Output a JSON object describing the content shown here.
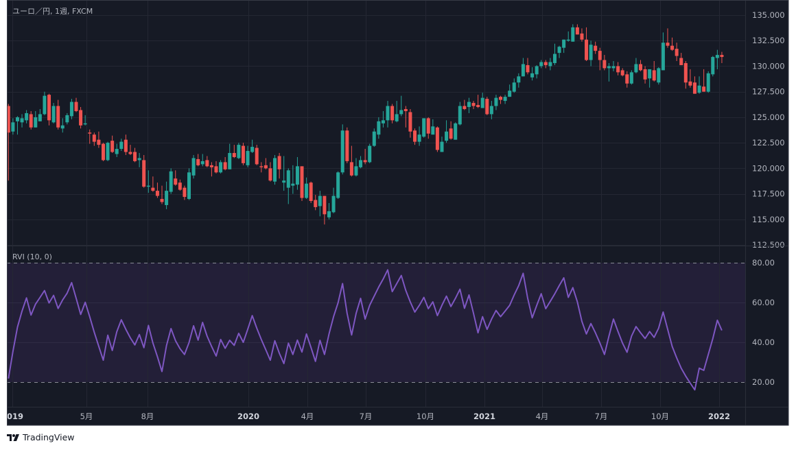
{
  "header": {
    "symbol_title": "ユーロ／円, 1週, FXCM"
  },
  "indicator": {
    "title": "RVI (10, 0)"
  },
  "brand": {
    "name": "TradingView",
    "logo_text": "TV"
  },
  "colors": {
    "background": "#161a25",
    "grid": "#242733",
    "up": "#26a69a",
    "down": "#ef5350",
    "rvi_line": "#7e57c2",
    "rvi_band": "#241f39",
    "axis_text": "#b2b5be"
  },
  "chart_data": [
    {
      "type": "candlestick",
      "title": "ユーロ／円, 1週, FXCM",
      "interval": "1週",
      "yticks": [
        "135.000",
        "132.500",
        "130.000",
        "127.500",
        "125.000",
        "122.500",
        "120.000",
        "117.500",
        "115.000",
        "112.500"
      ],
      "ylim": [
        112.5,
        135
      ],
      "grid": true,
      "ohlc_columns": [
        "open",
        "high",
        "low",
        "close"
      ],
      "ohlc": [
        [
          126.1,
          126.3,
          118.8,
          123.5
        ],
        [
          123.6,
          124.9,
          123.3,
          124.5
        ],
        [
          124.6,
          125.1,
          123.3,
          125.0
        ],
        [
          124.5,
          125.3,
          124.0,
          124.9
        ],
        [
          124.7,
          125.7,
          124.4,
          125.4
        ],
        [
          125.3,
          125.6,
          123.8,
          124.0
        ],
        [
          124.0,
          125.6,
          124.0,
          125.0
        ],
        [
          124.6,
          125.8,
          124.6,
          125.3
        ],
        [
          125.3,
          127.5,
          125.2,
          127.1
        ],
        [
          127.2,
          127.3,
          124.2,
          124.7
        ],
        [
          124.5,
          126.4,
          124.4,
          126.1
        ],
        [
          126.1,
          126.7,
          123.8,
          124.0
        ],
        [
          123.9,
          124.9,
          123.5,
          124.2
        ],
        [
          124.5,
          125.4,
          124.3,
          125.2
        ],
        [
          125.1,
          126.8,
          124.8,
          126.5
        ],
        [
          126.5,
          126.9,
          125.5,
          125.6
        ],
        [
          125.7,
          126.0,
          123.9,
          124.2
        ],
        [
          124.3,
          125.2,
          124.2,
          124.4
        ],
        [
          123.5,
          123.8,
          122.4,
          123.4
        ],
        [
          123.3,
          123.5,
          122.2,
          122.6
        ],
        [
          122.8,
          123.6,
          122.0,
          122.3
        ],
        [
          122.4,
          122.5,
          120.7,
          120.8
        ],
        [
          120.8,
          122.6,
          120.7,
          122.5
        ],
        [
          122.7,
          123.2,
          121.5,
          121.6
        ],
        [
          121.4,
          122.4,
          121.1,
          121.9
        ],
        [
          121.9,
          122.9,
          121.7,
          122.6
        ],
        [
          122.8,
          123.3,
          121.3,
          121.6
        ],
        [
          121.6,
          122.3,
          121.3,
          121.4
        ],
        [
          121.6,
          122.0,
          120.6,
          120.7
        ],
        [
          120.8,
          121.5,
          120.1,
          121.0
        ],
        [
          120.8,
          121.3,
          118.1,
          118.2
        ],
        [
          118.2,
          119.8,
          117.6,
          118.3
        ],
        [
          118.1,
          119.2,
          117.7,
          117.8
        ],
        [
          117.8,
          118.6,
          117.1,
          117.3
        ],
        [
          117.0,
          118.3,
          116.5,
          116.7
        ],
        [
          116.4,
          118.7,
          116.0,
          117.8
        ],
        [
          117.7,
          120.0,
          117.5,
          119.7
        ],
        [
          119.0,
          119.8,
          118.3,
          118.4
        ],
        [
          118.6,
          118.9,
          117.8,
          117.9
        ],
        [
          118.1,
          118.3,
          116.9,
          117.2
        ],
        [
          117.0,
          120.0,
          116.9,
          119.6
        ],
        [
          119.3,
          121.3,
          119.0,
          121.0
        ],
        [
          120.9,
          121.4,
          120.2,
          120.3
        ],
        [
          120.4,
          121.4,
          120.2,
          120.7
        ],
        [
          120.8,
          121.2,
          120.1,
          120.2
        ],
        [
          120.3,
          120.6,
          119.2,
          120.1
        ],
        [
          120.2,
          120.7,
          119.5,
          119.6
        ],
        [
          119.6,
          120.8,
          119.5,
          120.6
        ],
        [
          120.6,
          121.1,
          119.8,
          119.9
        ],
        [
          119.9,
          122.4,
          119.9,
          121.5
        ],
        [
          121.5,
          122.3,
          121.0,
          121.1
        ],
        [
          121.0,
          122.5,
          120.9,
          122.3
        ],
        [
          122.2,
          122.5,
          120.3,
          120.5
        ],
        [
          120.3,
          122.2,
          120.1,
          121.7
        ],
        [
          121.6,
          122.8,
          121.5,
          122.1
        ],
        [
          122.0,
          122.3,
          120.3,
          120.4
        ],
        [
          120.2,
          120.6,
          119.6,
          120.1
        ],
        [
          120.3,
          121.0,
          119.9,
          120.0
        ],
        [
          120.0,
          120.6,
          118.7,
          118.8
        ],
        [
          118.7,
          121.3,
          118.4,
          121.0
        ],
        [
          121.2,
          121.5,
          119.0,
          119.9
        ],
        [
          118.6,
          121.2,
          117.8,
          118.8
        ],
        [
          118.1,
          120.0,
          116.5,
          119.8
        ],
        [
          118.3,
          120.3,
          117.5,
          118.5
        ],
        [
          118.4,
          121.1,
          117.9,
          120.2
        ],
        [
          120.2,
          120.2,
          116.8,
          117.1
        ],
        [
          117.1,
          119.1,
          117.0,
          118.5
        ],
        [
          118.6,
          118.7,
          116.6,
          116.8
        ],
        [
          116.9,
          117.4,
          115.9,
          116.2
        ],
        [
          116.3,
          117.8,
          115.3,
          117.3
        ],
        [
          117.3,
          117.3,
          114.5,
          115.5
        ],
        [
          115.2,
          116.6,
          115.0,
          115.8
        ],
        [
          115.7,
          118.1,
          115.6,
          117.3
        ],
        [
          117.1,
          119.7,
          117.0,
          119.6
        ],
        [
          119.6,
          124.3,
          119.4,
          123.7
        ],
        [
          123.7,
          124.0,
          120.5,
          120.7
        ],
        [
          120.6,
          122.2,
          119.2,
          119.3
        ],
        [
          119.3,
          121.0,
          119.2,
          120.2
        ],
        [
          120.1,
          121.2,
          120.0,
          120.8
        ],
        [
          120.8,
          121.9,
          120.4,
          120.6
        ],
        [
          120.6,
          122.4,
          120.5,
          122.2
        ],
        [
          122.2,
          123.9,
          122.1,
          123.6
        ],
        [
          123.3,
          125.0,
          122.9,
          124.6
        ],
        [
          124.4,
          125.6,
          124.0,
          124.7
        ],
        [
          124.7,
          126.6,
          124.0,
          126.1
        ],
        [
          126.1,
          126.3,
          124.4,
          124.7
        ],
        [
          124.6,
          126.6,
          124.5,
          125.3
        ],
        [
          125.3,
          127.1,
          125.1,
          125.7
        ],
        [
          125.8,
          126.1,
          124.0,
          125.6
        ],
        [
          125.5,
          125.8,
          123.0,
          123.6
        ],
        [
          123.7,
          123.9,
          122.3,
          122.6
        ],
        [
          122.6,
          124.1,
          122.2,
          123.3
        ],
        [
          123.1,
          124.9,
          123.0,
          124.9
        ],
        [
          124.9,
          125.0,
          122.9,
          123.4
        ],
        [
          123.3,
          124.8,
          123.3,
          124.1
        ],
        [
          124.0,
          124.1,
          121.6,
          121.8
        ],
        [
          121.6,
          123.1,
          121.6,
          122.6
        ],
        [
          122.7,
          124.7,
          122.5,
          123.6
        ],
        [
          123.9,
          124.6,
          122.8,
          122.9
        ],
        [
          122.8,
          124.5,
          122.8,
          124.4
        ],
        [
          124.3,
          126.5,
          124.2,
          126.1
        ],
        [
          126.1,
          126.7,
          125.7,
          125.8
        ],
        [
          126.0,
          126.9,
          125.4,
          126.5
        ],
        [
          126.4,
          126.6,
          125.8,
          126.1
        ],
        [
          126.2,
          127.2,
          125.9,
          126.0
        ],
        [
          125.9,
          127.4,
          125.9,
          126.9
        ],
        [
          126.8,
          127.0,
          125.2,
          125.3
        ],
        [
          125.3,
          126.6,
          124.8,
          126.1
        ],
        [
          126.1,
          127.2,
          125.7,
          126.9
        ],
        [
          127.0,
          127.1,
          126.3,
          126.7
        ],
        [
          126.6,
          127.2,
          126.3,
          127.0
        ],
        [
          127.0,
          128.2,
          127.0,
          127.6
        ],
        [
          127.5,
          128.8,
          127.4,
          128.4
        ],
        [
          128.4,
          129.3,
          127.9,
          129.0
        ],
        [
          129.0,
          130.8,
          129.0,
          130.2
        ],
        [
          130.1,
          130.8,
          129.2,
          129.4
        ],
        [
          128.9,
          129.9,
          128.6,
          129.3
        ],
        [
          129.2,
          130.1,
          128.8,
          130.0
        ],
        [
          130.0,
          130.6,
          129.8,
          130.4
        ],
        [
          130.4,
          130.6,
          129.8,
          130.1
        ],
        [
          130.0,
          130.8,
          129.6,
          130.4
        ],
        [
          130.3,
          132.2,
          130.1,
          131.2
        ],
        [
          131.3,
          132.0,
          130.8,
          131.9
        ],
        [
          131.8,
          132.6,
          131.3,
          132.6
        ],
        [
          132.5,
          133.4,
          132.4,
          132.6
        ],
        [
          132.4,
          134.1,
          132.4,
          133.8
        ],
        [
          133.8,
          134.1,
          133.1,
          133.1
        ],
        [
          133.2,
          133.7,
          132.4,
          132.6
        ],
        [
          132.6,
          133.8,
          130.5,
          130.6
        ],
        [
          130.6,
          132.5,
          130.0,
          132.1
        ],
        [
          132.0,
          132.4,
          131.2,
          131.5
        ],
        [
          131.5,
          131.8,
          129.6,
          130.6
        ],
        [
          130.6,
          131.1,
          129.6,
          129.8
        ],
        [
          129.8,
          130.3,
          128.5,
          130.0
        ],
        [
          129.8,
          130.5,
          129.5,
          130.0
        ],
        [
          130.0,
          130.4,
          129.1,
          129.4
        ],
        [
          129.6,
          129.8,
          129.0,
          129.1
        ],
        [
          129.2,
          129.5,
          127.9,
          128.3
        ],
        [
          128.3,
          129.6,
          128.2,
          129.4
        ],
        [
          129.4,
          130.8,
          129.3,
          130.2
        ],
        [
          130.2,
          130.6,
          129.5,
          129.6
        ],
        [
          129.7,
          130.0,
          128.3,
          128.7
        ],
        [
          128.8,
          129.7,
          127.9,
          129.7
        ],
        [
          129.6,
          130.5,
          128.5,
          128.6
        ],
        [
          128.4,
          129.9,
          128.2,
          129.8
        ],
        [
          129.6,
          133.3,
          129.6,
          132.3
        ],
        [
          132.3,
          133.7,
          131.8,
          132.0
        ],
        [
          132.0,
          132.8,
          131.5,
          131.6
        ],
        [
          131.7,
          132.3,
          130.5,
          131.0
        ],
        [
          130.8,
          131.3,
          130.1,
          130.1
        ],
        [
          130.3,
          130.5,
          127.8,
          128.4
        ],
        [
          128.5,
          129.7,
          127.9,
          128.1
        ],
        [
          128.4,
          129.0,
          127.3,
          127.3
        ],
        [
          127.4,
          129.0,
          127.3,
          128.1
        ],
        [
          128.0,
          129.7,
          127.5,
          127.5
        ],
        [
          127.5,
          129.5,
          127.4,
          129.3
        ],
        [
          129.2,
          131.0,
          129.0,
          130.9
        ],
        [
          130.8,
          131.6,
          129.7,
          131.1
        ],
        [
          131.1,
          131.4,
          130.3,
          130.9
        ]
      ],
      "xticks": [
        "2019",
        "5月",
        "8月",
        "2020",
        "4月",
        "7月",
        "10月",
        "2021",
        "4月",
        "7月",
        "10月",
        "2022"
      ]
    },
    {
      "type": "line",
      "title": "RVI (10, 0)",
      "yticks": [
        "80.00",
        "60.00",
        "40.00",
        "20.00"
      ],
      "ylim": [
        9,
        83
      ],
      "bands": {
        "upper": 80,
        "lower": 20
      },
      "values": [
        21.8,
        35.5,
        47.7,
        55.6,
        62.3,
        53.7,
        59.2,
        62.6,
        66.0,
        59.8,
        63.6,
        57.0,
        61.3,
        64.7,
        70.0,
        62.1,
        54.0,
        60.1,
        52.9,
        45.1,
        38.0,
        31.0,
        43.6,
        35.9,
        45.3,
        51.3,
        46.5,
        42.2,
        38.7,
        43.9,
        37.3,
        48.5,
        39.6,
        32.8,
        25.3,
        38.3,
        46.9,
        40.8,
        36.8,
        33.9,
        39.9,
        48.3,
        41.1,
        50.0,
        43.1,
        37.9,
        33.1,
        41.4,
        37.0,
        41.0,
        38.5,
        44.5,
        40.0,
        46.5,
        53.4,
        47.1,
        41.4,
        36.2,
        31.0,
        40.8,
        34.5,
        29.3,
        39.6,
        33.9,
        41.1,
        35.1,
        44.2,
        37.4,
        30.4,
        41.0,
        33.9,
        44.2,
        52.9,
        59.8,
        69.5,
        54.6,
        43.7,
        54.6,
        62.1,
        51.7,
        58.6,
        63.2,
        67.8,
        71.8,
        76.4,
        65.5,
        69.5,
        73.6,
        66.1,
        60.3,
        55.2,
        58.6,
        62.6,
        56.9,
        60.3,
        53.4,
        58.6,
        63.2,
        58.0,
        62.1,
        66.7,
        57.1,
        63.8,
        54.6,
        44.8,
        52.9,
        46.5,
        51.7,
        56.0,
        52.9,
        55.7,
        58.6,
        63.8,
        68.4,
        74.7,
        62.1,
        52.3,
        58.6,
        64.4,
        56.9,
        60.6,
        64.4,
        68.6,
        72.4,
        62.6,
        67.5,
        60.3,
        50.5,
        44.2,
        49.4,
        44.8,
        39.6,
        33.9,
        43.1,
        51.7,
        45.4,
        39.6,
        35.0,
        43.1,
        47.9,
        44.8,
        41.9,
        45.4,
        42.5,
        47.1,
        55.2,
        46.5,
        37.9,
        32.2,
        27.0,
        23.0,
        19.5,
        16.1,
        27.0,
        25.9,
        33.9,
        41.9,
        51.1,
        46.0
      ]
    }
  ]
}
